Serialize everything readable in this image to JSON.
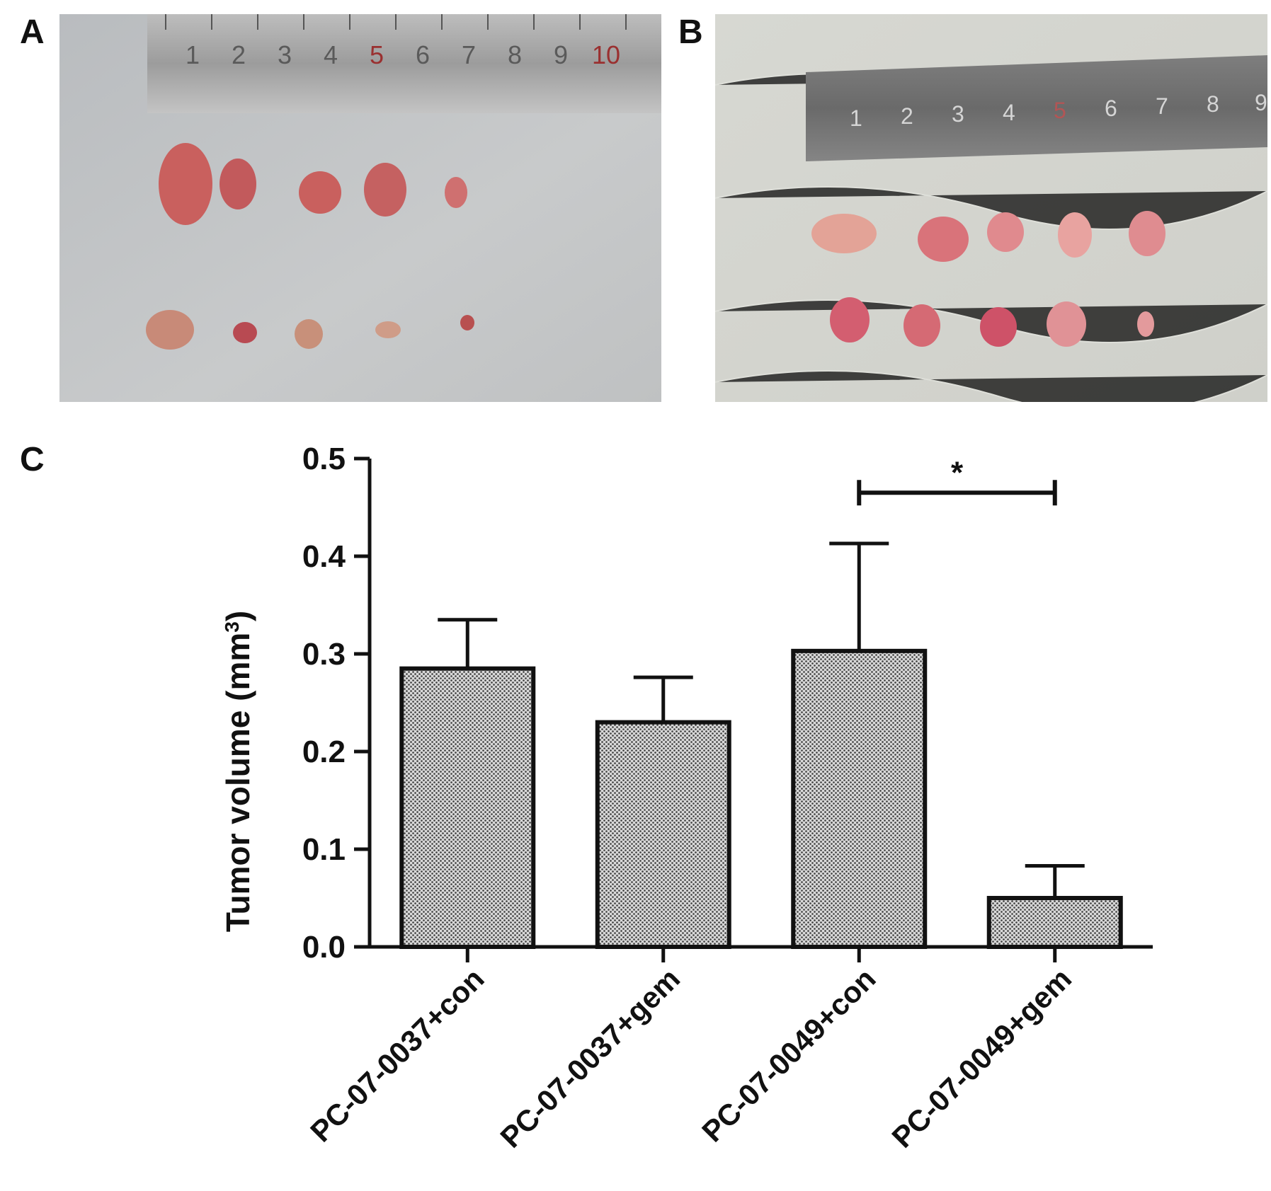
{
  "panels": {
    "a": {
      "label": "A",
      "ruler_numbers": [
        "1",
        "2",
        "3",
        "4",
        "5",
        "6",
        "7",
        "8",
        "9",
        "10"
      ]
    },
    "b": {
      "label": "B",
      "ruler_numbers": [
        "1",
        "2",
        "3",
        "4",
        "5",
        "6",
        "7",
        "8",
        "9"
      ]
    },
    "c": {
      "label": "C"
    }
  },
  "colors": {
    "bar_fill": "#d8d8d8",
    "bar_pattern": "#3a3a3a",
    "axis": "#111111",
    "tumor": "#c9605e",
    "tumor_b": "#d9737a"
  },
  "chart_data": {
    "type": "bar",
    "categories": [
      "PC-07-0037+con",
      "PC-07-0037+gem",
      "PC-07-0049+con",
      "PC-07-0049+gem"
    ],
    "values": [
      0.285,
      0.23,
      0.303,
      0.05
    ],
    "errors": [
      0.05,
      0.046,
      0.11,
      0.033
    ],
    "ylabel": "Tumor volume (mm",
    "ylabel_sup": "3",
    "ylabel_close": ")",
    "ylim": [
      0,
      0.5
    ],
    "yticks": [
      "0.0",
      "0.1",
      "0.2",
      "0.3",
      "0.4",
      "0.5"
    ],
    "ytick_values": [
      0,
      0.1,
      0.2,
      0.3,
      0.4,
      0.5
    ],
    "significance": {
      "from_category": 2,
      "to_category": 3,
      "y": 0.465,
      "label": "*"
    }
  }
}
